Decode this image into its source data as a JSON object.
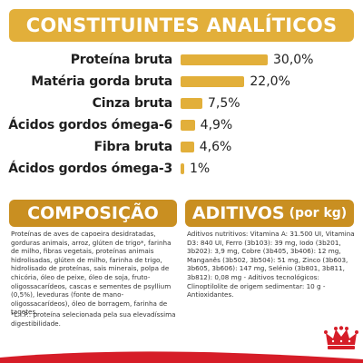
{
  "analytic": {
    "title": "CONSTITUINTES ANALÍTICOS",
    "rows": [
      {
        "label": "Proteína bruta",
        "value": "30,0%",
        "percent": 30.0
      },
      {
        "label": "Matéria gorda bruta",
        "value": "22,0%",
        "percent": 22.0
      },
      {
        "label": "Cinza bruta",
        "value": "7,5%",
        "percent": 7.5
      },
      {
        "label": "Ácidos gordos ómega-6",
        "value": "4,9%",
        "percent": 4.9
      },
      {
        "label": "Fibra bruta",
        "value": "4,6%",
        "percent": 4.6
      },
      {
        "label": "Ácidos gordos ómega-3",
        "value": "1%",
        "percent": 1.0
      }
    ]
  },
  "composition": {
    "title": "COMPOSIÇÃO",
    "text": "Proteínas de aves de capoeira desidratadas, gorduras animais, arroz, glúten de trigo*, farinha de milho, fibras vegetais, proteínas animais hidrolisadas, glúten de milho, farinha de trigo, hidrolisado de proteínas, sais minerais, polpa de chicória, óleo de peixe, óleo de soja, fruto-oligossacarídeos, cascas e sementes de psyllium (0,5%), leveduras (fonte de mano-oligossacarídeos), óleo de borragem, farinha de tagetes.",
    "note": "*L.I.P.: proteína selecionada pela sua elevadíssima digestibilidade."
  },
  "additives": {
    "title": "ADITIVOS",
    "title_suffix": "(por kg)",
    "text": "Aditivos nutritivos: Vitamina A: 31.500 UI, Vitamina D3: 840 UI, Ferro (3b103): 39 mg, Iodo (3b201, 3b202): 3,9 mg, Cobre (3b405, 3b406): 12 mg, Manganês (3b502, 3b504): 51 mg, Zinco (3b603, 3b605, 3b606): 147 mg, Selénio (3b801, 3b811, 3b812): 0,08 mg - Aditivos tecnológicos: Clinoptilolite de origem sedimentar: 10 g - Antioxidantes."
  },
  "colors": {
    "accent": "#e2af3a",
    "accent_dark": "#c98f21",
    "brand_red": "#d61d28"
  },
  "logo": {
    "icon": "crown-icon"
  }
}
